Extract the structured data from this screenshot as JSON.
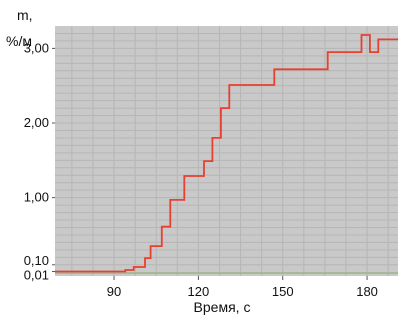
{
  "chart_data": {
    "type": "line",
    "step": true,
    "title": "",
    "ylabel": "m,",
    "ylabel_unit": "%/м",
    "xlabel": "Время, с",
    "xlim": [
      69,
      191
    ],
    "ylim": [
      -0.05,
      3.3
    ],
    "grid": true,
    "x_ticks": [
      {
        "value": 90,
        "label": "90"
      },
      {
        "value": 120,
        "label": "120"
      },
      {
        "value": 150,
        "label": "150"
      },
      {
        "value": 180,
        "label": "180"
      }
    ],
    "y_ticks": [
      {
        "value": 0.01,
        "label": "0,01"
      },
      {
        "value": 0.1,
        "label": "0,10"
      },
      {
        "value": 1.0,
        "label": "1,00"
      },
      {
        "value": 2.0,
        "label": "2,00"
      },
      {
        "value": 3.0,
        "label": "3,00"
      }
    ],
    "series": [
      {
        "color": "#e8402e",
        "x": [
          69,
          94,
          97,
          101,
          103,
          107,
          110,
          115,
          122,
          125,
          128,
          131,
          135,
          147,
          166,
          178,
          181,
          184,
          187,
          191
        ],
        "y": [
          0.01,
          0.03,
          0.07,
          0.19,
          0.35,
          0.61,
          0.97,
          1.29,
          1.49,
          1.8,
          2.2,
          2.51,
          2.51,
          2.72,
          2.95,
          3.18,
          2.95,
          3.12,
          3.12,
          3.12
        ]
      }
    ],
    "colors": {
      "plot_background": "#c9c9c9",
      "grid": "#b6b6b6",
      "line": "#e8402e",
      "baseline": "#9fb28a"
    }
  }
}
